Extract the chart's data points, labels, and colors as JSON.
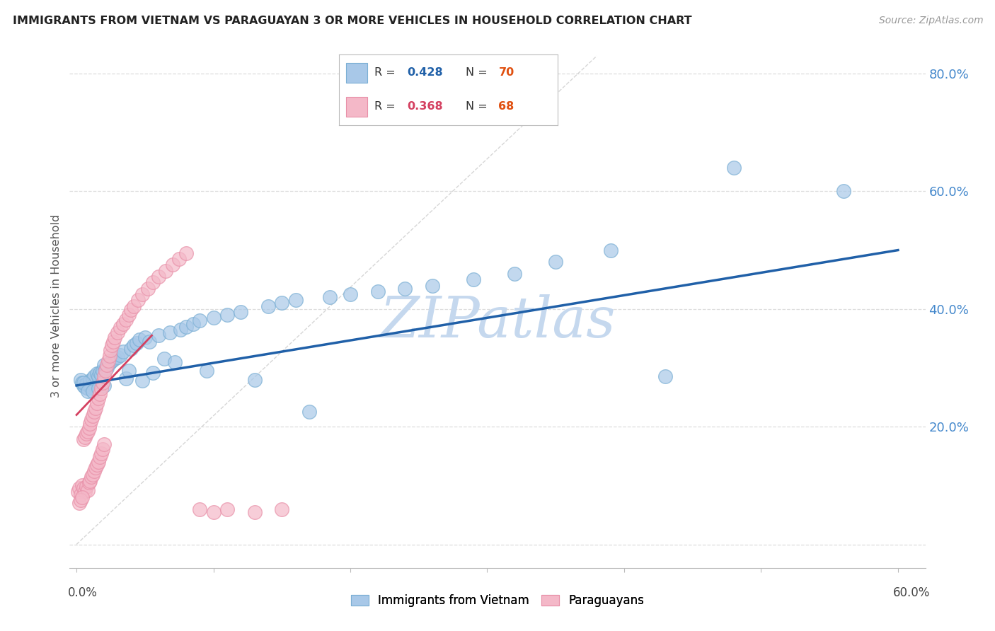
{
  "title": "IMMIGRANTS FROM VIETNAM VS PARAGUAYAN 3 OR MORE VEHICLES IN HOUSEHOLD CORRELATION CHART",
  "source": "Source: ZipAtlas.com",
  "ylabel": "3 or more Vehicles in Household",
  "xlim": [
    -0.005,
    0.62
  ],
  "ylim": [
    -0.04,
    0.85
  ],
  "blue_color": "#a8c8e8",
  "blue_edge_color": "#7bafd4",
  "pink_color": "#f4b8c8",
  "pink_edge_color": "#e890a8",
  "blue_line_color": "#2060a8",
  "pink_line_color": "#d44060",
  "diag_color": "#cccccc",
  "grid_color": "#dddddd",
  "background_color": "#ffffff",
  "watermark": "ZIPatlas",
  "watermark_color": "#c5d8ee",
  "ytick_color": "#4488cc",
  "legend_r_blue_color": "#2060a8",
  "legend_r_pink_color": "#d44060",
  "legend_n_color": "#e05010",
  "blue_x": [
    0.003,
    0.004,
    0.005,
    0.006,
    0.007,
    0.008,
    0.009,
    0.01,
    0.011,
    0.012,
    0.013,
    0.014,
    0.015,
    0.016,
    0.017,
    0.018,
    0.019,
    0.02,
    0.021,
    0.022,
    0.024,
    0.026,
    0.028,
    0.03,
    0.032,
    0.034,
    0.036,
    0.038,
    0.04,
    0.042,
    0.044,
    0.046,
    0.048,
    0.05,
    0.053,
    0.056,
    0.06,
    0.064,
    0.068,
    0.072,
    0.076,
    0.08,
    0.085,
    0.09,
    0.095,
    0.1,
    0.11,
    0.12,
    0.13,
    0.14,
    0.15,
    0.16,
    0.17,
    0.185,
    0.2,
    0.22,
    0.24,
    0.26,
    0.29,
    0.32,
    0.35,
    0.39,
    0.43,
    0.48,
    0.56,
    0.005,
    0.008,
    0.012,
    0.016,
    0.02
  ],
  "blue_y": [
    0.28,
    0.275,
    0.27,
    0.268,
    0.272,
    0.265,
    0.27,
    0.278,
    0.268,
    0.282,
    0.285,
    0.268,
    0.29,
    0.285,
    0.292,
    0.288,
    0.295,
    0.305,
    0.298,
    0.3,
    0.308,
    0.312,
    0.315,
    0.318,
    0.322,
    0.328,
    0.282,
    0.295,
    0.332,
    0.338,
    0.342,
    0.348,
    0.278,
    0.352,
    0.345,
    0.292,
    0.355,
    0.315,
    0.36,
    0.31,
    0.365,
    0.37,
    0.375,
    0.38,
    0.295,
    0.385,
    0.39,
    0.395,
    0.28,
    0.405,
    0.41,
    0.415,
    0.225,
    0.42,
    0.425,
    0.43,
    0.435,
    0.44,
    0.45,
    0.46,
    0.48,
    0.5,
    0.285,
    0.64,
    0.6,
    0.275,
    0.26,
    0.26,
    0.265,
    0.27
  ],
  "pink_x": [
    0.001,
    0.002,
    0.003,
    0.004,
    0.005,
    0.006,
    0.007,
    0.008,
    0.009,
    0.01,
    0.011,
    0.012,
    0.013,
    0.014,
    0.015,
    0.016,
    0.017,
    0.018,
    0.019,
    0.02,
    0.002,
    0.003,
    0.004,
    0.005,
    0.006,
    0.007,
    0.008,
    0.009,
    0.01,
    0.011,
    0.012,
    0.013,
    0.014,
    0.015,
    0.016,
    0.017,
    0.018,
    0.019,
    0.02,
    0.021,
    0.022,
    0.023,
    0.024,
    0.025,
    0.026,
    0.027,
    0.028,
    0.03,
    0.032,
    0.034,
    0.036,
    0.038,
    0.04,
    0.042,
    0.045,
    0.048,
    0.052,
    0.056,
    0.06,
    0.065,
    0.07,
    0.075,
    0.08,
    0.09,
    0.1,
    0.11,
    0.13,
    0.15
  ],
  "pink_y": [
    0.09,
    0.095,
    0.085,
    0.1,
    0.095,
    0.09,
    0.098,
    0.092,
    0.105,
    0.108,
    0.115,
    0.118,
    0.125,
    0.13,
    0.135,
    0.14,
    0.148,
    0.155,
    0.162,
    0.17,
    0.07,
    0.075,
    0.08,
    0.178,
    0.182,
    0.188,
    0.192,
    0.198,
    0.205,
    0.212,
    0.218,
    0.225,
    0.232,
    0.24,
    0.248,
    0.255,
    0.265,
    0.275,
    0.285,
    0.295,
    0.305,
    0.312,
    0.32,
    0.33,
    0.338,
    0.345,
    0.352,
    0.36,
    0.368,
    0.375,
    0.382,
    0.39,
    0.398,
    0.405,
    0.415,
    0.425,
    0.435,
    0.445,
    0.455,
    0.465,
    0.475,
    0.485,
    0.495,
    0.06,
    0.055,
    0.06,
    0.055,
    0.06
  ]
}
